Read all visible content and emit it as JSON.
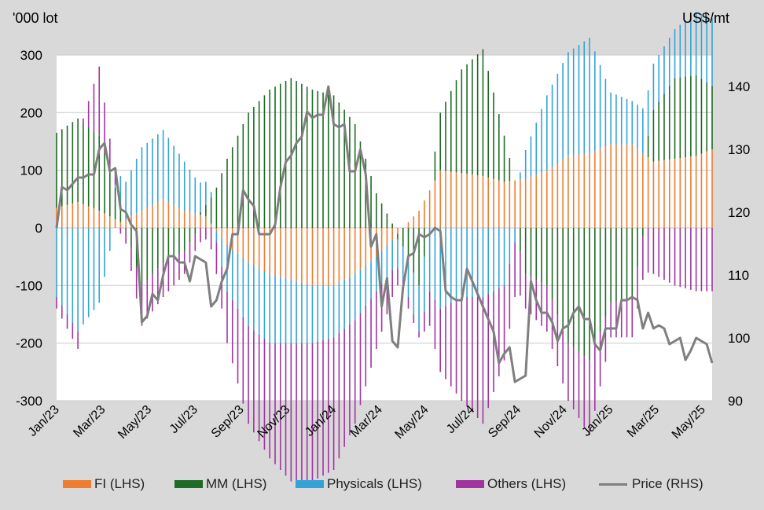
{
  "left_unit": "'000 lot",
  "right_unit": "US$/mt",
  "legend": [
    {
      "label": "FI (LHS)",
      "color": "#ed7d31",
      "kind": "bar"
    },
    {
      "label": "MM (LHS)",
      "color": "#1e6b25",
      "kind": "bar"
    },
    {
      "label": "Physicals (LHS)",
      "color": "#33a3d6",
      "kind": "bar"
    },
    {
      "label": "Others (LHS)",
      "color": "#a035a0",
      "kind": "bar"
    },
    {
      "label": "Price (RHS)",
      "color": "#7f7f7f",
      "kind": "line"
    }
  ],
  "chart_data": {
    "type": "bar",
    "stacking": "diverging",
    "x_tick_labels": [
      "Jan/23",
      "Mar/23",
      "May/23",
      "Jul/23",
      "Sep/23",
      "Nov/23",
      "Jan/24",
      "Mar/24",
      "May/24",
      "Jul/24",
      "Sep/24",
      "Nov/24",
      "Jan/25",
      "Mar/25",
      "May/25"
    ],
    "y_left": {
      "min": -300,
      "max": 300,
      "ticks": [
        300,
        200,
        100,
        0,
        -100,
        -200,
        -300
      ]
    },
    "y_right": {
      "min": 90,
      "max": 145,
      "ticks": [
        140,
        130,
        120,
        110,
        100,
        90
      ]
    },
    "grid": true,
    "legend_position": "bottom",
    "series": [
      {
        "name": "FI (LHS)",
        "axis": "left",
        "color": "#ed7d31",
        "values": [
          [
            0,
            35
          ],
          [
            4,
            45
          ],
          [
            8,
            30
          ],
          [
            12,
            10
          ],
          [
            16,
            30
          ],
          [
            20,
            50
          ],
          [
            24,
            30
          ],
          [
            28,
            20
          ],
          [
            32,
            -30
          ],
          [
            36,
            -60
          ],
          [
            40,
            -80
          ],
          [
            44,
            -90
          ],
          [
            48,
            -100
          ],
          [
            52,
            -100
          ],
          [
            56,
            -80
          ],
          [
            60,
            -50
          ],
          [
            64,
            -10
          ],
          [
            68,
            30
          ],
          [
            72,
            100
          ],
          [
            76,
            95
          ],
          [
            80,
            90
          ],
          [
            84,
            80
          ],
          [
            88,
            85
          ],
          [
            92,
            100
          ],
          [
            96,
            125
          ],
          [
            100,
            130
          ],
          [
            104,
            145
          ],
          [
            108,
            145
          ],
          [
            112,
            115
          ],
          [
            116,
            120
          ],
          [
            120,
            125
          ],
          [
            124,
            140
          ],
          [
            128,
            150
          ],
          [
            132,
            115
          ],
          [
            136,
            100
          ],
          [
            140,
            115
          ],
          [
            144,
            90
          ],
          [
            148,
            80
          ],
          [
            152,
            115
          ],
          [
            156,
            170
          ],
          [
            160,
            175
          ]
        ]
      },
      {
        "name": "MM (LHS)",
        "axis": "left",
        "color": "#1e6b25",
        "values": [
          [
            0,
            130
          ],
          [
            4,
            145
          ],
          [
            8,
            130
          ],
          [
            12,
            30
          ],
          [
            16,
            -100
          ],
          [
            20,
            -60
          ],
          [
            24,
            -40
          ],
          [
            28,
            20
          ],
          [
            32,
            120
          ],
          [
            36,
            200
          ],
          [
            40,
            240
          ],
          [
            44,
            260
          ],
          [
            48,
            240
          ],
          [
            52,
            230
          ],
          [
            56,
            180
          ],
          [
            60,
            60
          ],
          [
            64,
            -10
          ],
          [
            68,
            -100
          ],
          [
            72,
            100
          ],
          [
            76,
            180
          ],
          [
            80,
            220
          ],
          [
            84,
            80
          ],
          [
            88,
            -80
          ],
          [
            92,
            -100
          ],
          [
            96,
            -200
          ],
          [
            100,
            -230
          ],
          [
            104,
            -130
          ],
          [
            108,
            -120
          ],
          [
            112,
            90
          ],
          [
            116,
            140
          ],
          [
            120,
            140
          ],
          [
            124,
            100
          ],
          [
            128,
            120
          ],
          [
            132,
            -180
          ],
          [
            136,
            195
          ],
          [
            140,
            130
          ],
          [
            144,
            40
          ],
          [
            148,
            -140
          ],
          [
            152,
            -180
          ],
          [
            156,
            -200
          ],
          [
            160,
            -220
          ]
        ]
      },
      {
        "name": "Physicals (LHS)",
        "axis": "left",
        "color": "#33a3d6",
        "values": [
          [
            0,
            -120
          ],
          [
            4,
            -180
          ],
          [
            8,
            -130
          ],
          [
            12,
            50
          ],
          [
            16,
            110
          ],
          [
            20,
            120
          ],
          [
            24,
            85
          ],
          [
            28,
            40
          ],
          [
            32,
            -80
          ],
          [
            36,
            -110
          ],
          [
            40,
            -120
          ],
          [
            44,
            -110
          ],
          [
            48,
            -100
          ],
          [
            52,
            -90
          ],
          [
            56,
            -80
          ],
          [
            60,
            -60
          ],
          [
            64,
            -50
          ],
          [
            68,
            -80
          ],
          [
            72,
            -140
          ],
          [
            76,
            -120
          ],
          [
            80,
            -120
          ],
          [
            84,
            -100
          ],
          [
            88,
            50
          ],
          [
            92,
            130
          ],
          [
            96,
            180
          ],
          [
            100,
            200
          ],
          [
            104,
            90
          ],
          [
            108,
            75
          ],
          [
            112,
            80
          ],
          [
            116,
            85
          ],
          [
            120,
            110
          ],
          [
            124,
            120
          ],
          [
            128,
            90
          ],
          [
            132,
            110
          ],
          [
            136,
            80
          ],
          [
            140,
            60
          ],
          [
            144,
            -120
          ],
          [
            148,
            -150
          ],
          [
            152,
            90
          ],
          [
            156,
            100
          ],
          [
            160,
            120
          ]
        ]
      },
      {
        "name": "Others (LHS)",
        "axis": "left",
        "color": "#a035a0",
        "values": [
          [
            0,
            -20
          ],
          [
            4,
            -30
          ],
          [
            8,
            120
          ],
          [
            12,
            -10
          ],
          [
            16,
            -70
          ],
          [
            20,
            -60
          ],
          [
            24,
            -40
          ],
          [
            28,
            -20
          ],
          [
            32,
            -90
          ],
          [
            36,
            -170
          ],
          [
            40,
            -200
          ],
          [
            44,
            -240
          ],
          [
            48,
            -240
          ],
          [
            52,
            -230
          ],
          [
            56,
            -180
          ],
          [
            60,
            -100
          ],
          [
            64,
            -30
          ],
          [
            68,
            -10
          ],
          [
            72,
            -110
          ],
          [
            76,
            -180
          ],
          [
            80,
            -220
          ],
          [
            84,
            -130
          ],
          [
            88,
            -60
          ],
          [
            92,
            -80
          ],
          [
            96,
            -100
          ],
          [
            100,
            -130
          ],
          [
            104,
            -60
          ],
          [
            108,
            -70
          ],
          [
            112,
            -80
          ],
          [
            116,
            -100
          ],
          [
            120,
            -110
          ],
          [
            124,
            -110
          ],
          [
            128,
            -90
          ],
          [
            132,
            -80
          ],
          [
            136,
            -100
          ],
          [
            140,
            -110
          ],
          [
            144,
            -70
          ],
          [
            148,
            -60
          ],
          [
            152,
            -100
          ],
          [
            156,
            -120
          ],
          [
            160,
            -170
          ]
        ]
      },
      {
        "name": "Price (RHS)",
        "axis": "right",
        "color": "#7f7f7f",
        "values": [
          [
            0,
            117.5
          ],
          [
            1,
            124
          ],
          [
            2,
            123.5
          ],
          [
            3,
            124.5
          ],
          [
            4,
            125.5
          ],
          [
            5,
            125.5
          ],
          [
            6,
            126
          ],
          [
            7,
            126
          ],
          [
            8,
            130
          ],
          [
            9,
            131
          ],
          [
            10,
            126.5
          ],
          [
            11,
            127
          ],
          [
            12,
            120.5
          ],
          [
            13,
            120
          ],
          [
            14,
            118
          ],
          [
            15,
            117
          ],
          [
            16,
            102.5
          ],
          [
            17,
            103.5
          ],
          [
            18,
            107
          ],
          [
            19,
            106
          ],
          [
            20,
            110
          ],
          [
            21,
            113
          ],
          [
            22,
            113
          ],
          [
            23,
            112
          ],
          [
            24,
            112
          ],
          [
            25,
            109
          ],
          [
            26,
            113
          ],
          [
            27,
            112.5
          ],
          [
            28,
            112
          ],
          [
            29,
            105
          ],
          [
            30,
            106
          ],
          [
            31,
            109
          ],
          [
            32,
            111
          ],
          [
            33,
            116.5
          ],
          [
            34,
            116.5
          ],
          [
            35,
            123.5
          ],
          [
            36,
            122
          ],
          [
            37,
            121
          ],
          [
            38,
            116.5
          ],
          [
            39,
            116.5
          ],
          [
            40,
            116.5
          ],
          [
            41,
            118
          ],
          [
            42,
            124
          ],
          [
            43,
            128
          ],
          [
            44,
            129
          ],
          [
            45,
            131
          ],
          [
            46,
            132
          ],
          [
            47,
            136
          ],
          [
            48,
            135
          ],
          [
            49,
            135.5
          ],
          [
            50,
            135.5
          ],
          [
            51,
            140
          ],
          [
            52,
            134
          ],
          [
            53,
            133.5
          ],
          [
            54,
            134
          ],
          [
            55,
            126.5
          ],
          [
            56,
            126.5
          ],
          [
            57,
            130
          ],
          [
            58,
            126
          ],
          [
            59,
            114.5
          ],
          [
            60,
            116.5
          ],
          [
            61,
            105
          ],
          [
            62,
            109.5
          ],
          [
            63,
            99.5
          ],
          [
            64,
            98.5
          ],
          [
            65,
            108
          ],
          [
            66,
            113
          ],
          [
            67,
            113.5
          ],
          [
            68,
            116.5
          ],
          [
            69,
            116
          ],
          [
            70,
            116.5
          ],
          [
            71,
            117.5
          ],
          [
            72,
            117
          ],
          [
            73,
            107.5
          ],
          [
            74,
            106.5
          ],
          [
            75,
            106
          ],
          [
            76,
            106
          ],
          [
            77,
            111
          ],
          [
            78,
            109
          ],
          [
            79,
            107
          ],
          [
            80,
            105
          ],
          [
            81,
            103
          ],
          [
            82,
            101
          ],
          [
            83,
            96
          ],
          [
            84,
            97.5
          ],
          [
            85,
            98.5
          ],
          [
            86,
            93
          ],
          [
            87,
            93.5
          ],
          [
            88,
            94
          ],
          [
            89,
            109
          ],
          [
            90,
            106
          ],
          [
            91,
            104
          ],
          [
            92,
            104
          ],
          [
            93,
            102.5
          ],
          [
            94,
            99.5
          ],
          [
            95,
            101.5
          ],
          [
            96,
            102
          ],
          [
            97,
            104
          ],
          [
            98,
            105
          ],
          [
            99,
            103
          ],
          [
            100,
            103
          ],
          [
            101,
            99
          ],
          [
            102,
            98
          ],
          [
            103,
            101.5
          ],
          [
            104,
            101.5
          ],
          [
            105,
            101.5
          ],
          [
            106,
            106
          ],
          [
            107,
            106
          ],
          [
            108,
            106.5
          ],
          [
            109,
            106
          ],
          [
            110,
            101.5
          ],
          [
            111,
            104
          ],
          [
            112,
            101.5
          ],
          [
            113,
            102
          ],
          [
            114,
            101.5
          ],
          [
            115,
            99
          ],
          [
            116,
            99.5
          ],
          [
            117,
            100
          ],
          [
            118,
            96.5
          ],
          [
            119,
            98
          ],
          [
            120,
            100
          ],
          [
            121,
            99.5
          ],
          [
            122,
            99
          ],
          [
            123,
            96
          ]
        ]
      }
    ]
  }
}
